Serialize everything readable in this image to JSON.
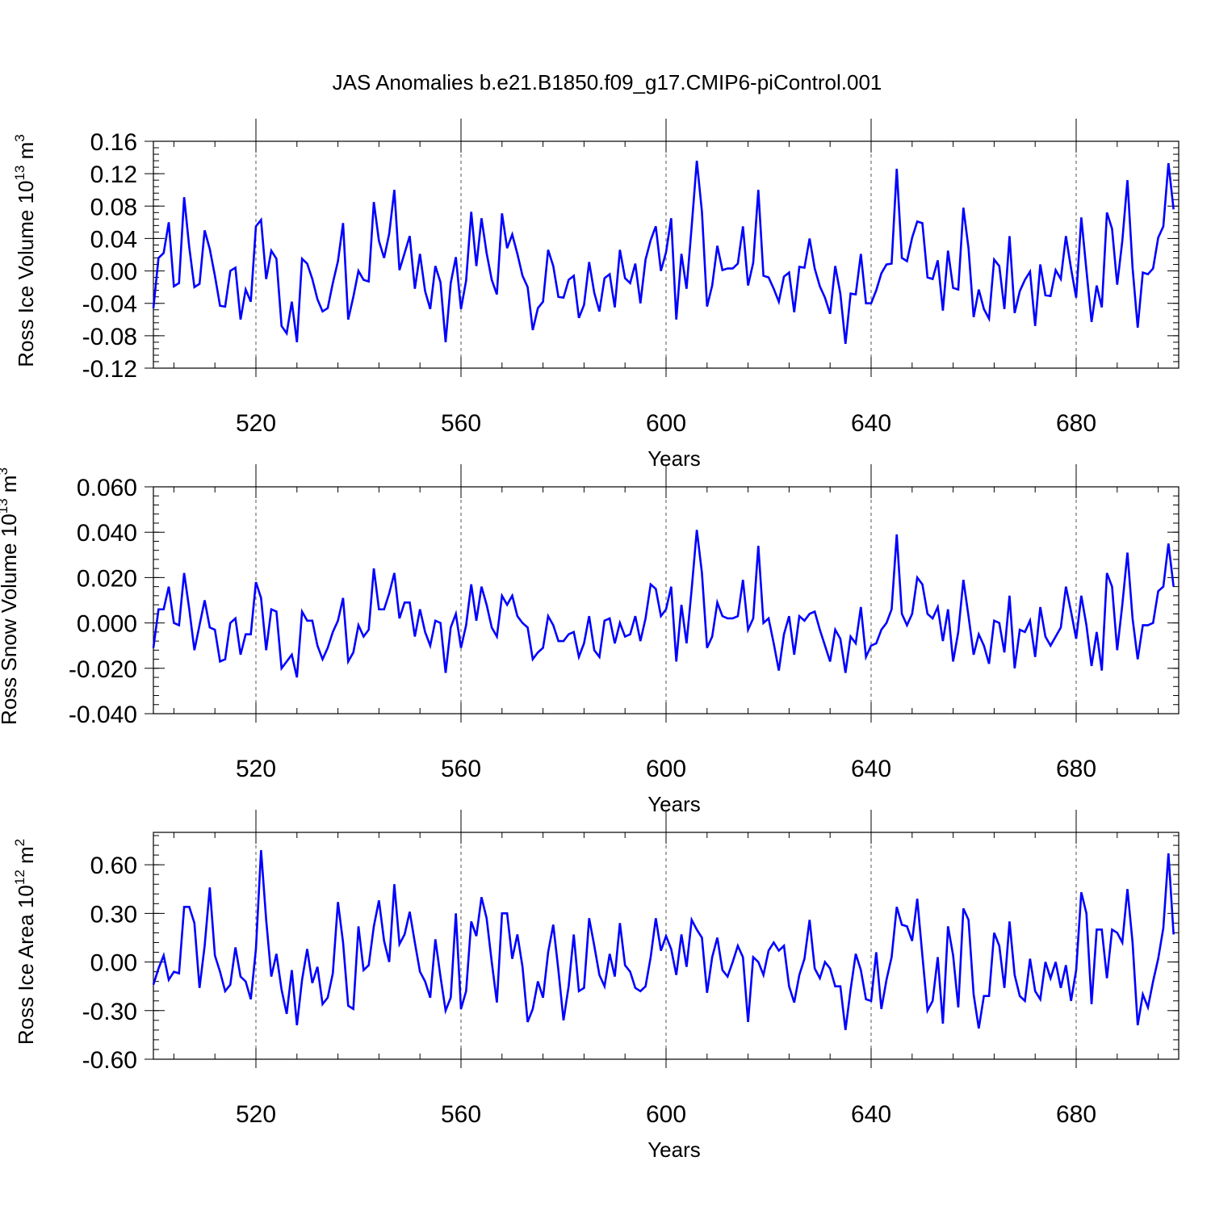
{
  "title": "JAS Anomalies b.e21.B1850.f09_g17.CMIP6-piControl.001",
  "series_color": "#0000ff",
  "chart_data": [
    {
      "type": "line",
      "ylabel": "Ross Ice Volume",
      "ylabel_unit_base": "10",
      "ylabel_unit_exp": "13",
      "ylabel_unit_tail": " m",
      "ylabel_unit_tail_exp": "3",
      "xlabel": "Years",
      "xlim": [
        500,
        700
      ],
      "ylim": [
        -0.12,
        0.16
      ],
      "yticks": [
        -0.12,
        -0.08,
        -0.04,
        0.0,
        0.04,
        0.08,
        0.12,
        0.16
      ],
      "ytick_labels": [
        "-0.12",
        "-0.08",
        "-0.04",
        "0.00",
        "0.04",
        "0.08",
        "0.12",
        "0.16"
      ],
      "xticks": [
        520,
        560,
        600,
        640,
        680
      ],
      "xtick_labels": [
        "520",
        "560",
        "600",
        "640",
        "680"
      ],
      "x_start": 500,
      "values": [
        -0.046,
        0.016,
        0.022,
        0.06,
        -0.019,
        -0.015,
        0.091,
        0.029,
        -0.02,
        -0.016,
        0.05,
        0.027,
        -0.006,
        -0.043,
        -0.044,
        0.0,
        0.004,
        -0.06,
        -0.023,
        -0.038,
        0.055,
        0.063,
        -0.01,
        0.025,
        0.015,
        -0.068,
        -0.077,
        -0.038,
        -0.088,
        0.015,
        0.009,
        -0.01,
        -0.035,
        -0.05,
        -0.046,
        -0.015,
        0.012,
        0.059,
        -0.06,
        -0.032,
        0.0,
        -0.011,
        -0.013,
        0.085,
        0.037,
        0.016,
        0.046,
        0.1,
        0.001,
        0.022,
        0.043,
        -0.022,
        0.021,
        -0.025,
        -0.047,
        0.006,
        -0.014,
        -0.088,
        -0.015,
        0.017,
        -0.047,
        -0.012,
        0.073,
        0.006,
        0.065,
        0.022,
        -0.011,
        -0.029,
        0.071,
        0.028,
        0.045,
        0.021,
        -0.006,
        -0.02,
        -0.073,
        -0.046,
        -0.038,
        0.026,
        0.006,
        -0.032,
        -0.033,
        -0.011,
        -0.006,
        -0.058,
        -0.042,
        0.011,
        -0.027,
        -0.05,
        -0.009,
        -0.004,
        -0.045,
        0.026,
        -0.009,
        -0.015,
        0.009,
        -0.04,
        0.014,
        0.038,
        0.055,
        0.0,
        0.023,
        0.065,
        -0.06,
        0.021,
        -0.022,
        0.055,
        0.136,
        0.073,
        -0.044,
        -0.018,
        0.031,
        0.001,
        0.003,
        0.003,
        0.009,
        0.055,
        -0.018,
        0.01,
        0.1,
        -0.006,
        -0.008,
        -0.022,
        -0.038,
        -0.007,
        -0.002,
        -0.051,
        0.005,
        0.004,
        0.04,
        0.003,
        -0.019,
        -0.033,
        -0.053,
        0.006,
        -0.028,
        -0.09,
        -0.028,
        -0.029,
        0.021,
        -0.04,
        -0.04,
        -0.024,
        -0.003,
        0.008,
        0.009,
        0.126,
        0.016,
        0.012,
        0.041,
        0.061,
        0.059,
        -0.008,
        -0.01,
        0.013,
        -0.049,
        0.025,
        -0.021,
        -0.023,
        0.078,
        0.028,
        -0.057,
        -0.023,
        -0.047,
        -0.059,
        0.014,
        0.006,
        -0.047,
        0.043,
        -0.052,
        -0.025,
        -0.011,
        -0.001,
        -0.068,
        0.008,
        -0.03,
        -0.031,
        0.001,
        -0.01,
        0.043,
        0.003,
        -0.033,
        0.066,
        0.001,
        -0.063,
        -0.018,
        -0.045,
        0.072,
        0.052,
        -0.017,
        0.037,
        0.112,
        0.004,
        -0.07,
        -0.002,
        -0.004,
        0.003,
        0.041,
        0.055,
        0.133,
        0.076
      ]
    },
    {
      "type": "line",
      "ylabel": "Ross Snow Volume",
      "ylabel_unit_base": "10",
      "ylabel_unit_exp": "13",
      "ylabel_unit_tail": " m",
      "ylabel_unit_tail_exp": "3",
      "xlabel": "Years",
      "xlim": [
        500,
        700
      ],
      "ylim": [
        -0.04,
        0.06
      ],
      "yticks": [
        -0.04,
        -0.02,
        0.0,
        0.02,
        0.04,
        0.06
      ],
      "ytick_labels": [
        "-0.040",
        "-0.020",
        "0.000",
        "0.020",
        "0.040",
        "0.060"
      ],
      "xticks": [
        520,
        560,
        600,
        640,
        680
      ],
      "xtick_labels": [
        "520",
        "560",
        "600",
        "640",
        "680"
      ],
      "x_start": 500,
      "values": [
        -0.011,
        0.006,
        0.006,
        0.016,
        0.0,
        -0.001,
        0.022,
        0.006,
        -0.012,
        -0.001,
        0.01,
        -0.002,
        -0.003,
        -0.017,
        -0.016,
        0.0,
        0.002,
        -0.014,
        -0.005,
        -0.005,
        0.018,
        0.011,
        -0.012,
        0.006,
        0.005,
        -0.02,
        -0.017,
        -0.014,
        -0.024,
        0.005,
        0.001,
        0.001,
        -0.01,
        -0.016,
        -0.011,
        -0.004,
        0.001,
        0.011,
        -0.017,
        -0.013,
        -0.001,
        -0.006,
        -0.003,
        0.024,
        0.006,
        0.006,
        0.013,
        0.022,
        0.002,
        0.009,
        0.009,
        -0.006,
        0.006,
        -0.004,
        -0.01,
        0.001,
        0.0,
        -0.022,
        -0.002,
        0.004,
        -0.011,
        -0.001,
        0.017,
        0.001,
        0.016,
        0.008,
        -0.002,
        -0.006,
        0.012,
        0.008,
        0.012,
        0.003,
        0.0,
        -0.002,
        -0.016,
        -0.013,
        -0.011,
        0.003,
        -0.001,
        -0.008,
        -0.008,
        -0.005,
        -0.004,
        -0.015,
        -0.009,
        0.003,
        -0.012,
        -0.015,
        0.001,
        0.002,
        -0.009,
        0.0,
        -0.006,
        -0.005,
        0.003,
        -0.008,
        0.002,
        0.017,
        0.015,
        0.003,
        0.006,
        0.016,
        -0.017,
        0.008,
        -0.009,
        0.015,
        0.041,
        0.022,
        -0.011,
        -0.006,
        0.009,
        0.003,
        0.002,
        0.002,
        0.003,
        0.019,
        -0.003,
        0.002,
        0.034,
        0.0,
        0.002,
        -0.009,
        -0.021,
        -0.005,
        0.003,
        -0.014,
        0.003,
        0.001,
        0.004,
        0.005,
        -0.003,
        -0.01,
        -0.017,
        -0.003,
        -0.007,
        -0.022,
        -0.006,
        -0.009,
        0.007,
        -0.015,
        -0.01,
        -0.009,
        -0.003,
        0.0,
        0.006,
        0.039,
        0.004,
        -0.001,
        0.004,
        0.02,
        0.017,
        0.004,
        0.002,
        0.007,
        -0.008,
        0.006,
        -0.017,
        -0.004,
        0.019,
        0.003,
        -0.014,
        -0.005,
        -0.01,
        -0.018,
        0.001,
        0.0,
        -0.013,
        0.012,
        -0.02,
        -0.003,
        -0.004,
        0.001,
        -0.015,
        0.007,
        -0.006,
        -0.01,
        -0.006,
        -0.002,
        0.016,
        0.005,
        -0.007,
        0.012,
        -0.001,
        -0.019,
        -0.004,
        -0.021,
        0.022,
        0.016,
        -0.012,
        0.008,
        0.031,
        0.002,
        -0.016,
        -0.001,
        -0.001,
        0.0,
        0.014,
        0.016,
        0.035,
        0.016
      ]
    },
    {
      "type": "line",
      "ylabel": "Ross Ice Area",
      "ylabel_unit_base": "10",
      "ylabel_unit_exp": "12",
      "ylabel_unit_tail": " m",
      "ylabel_unit_tail_exp": "2",
      "xlabel": "Years",
      "xlim": [
        500,
        700
      ],
      "ylim": [
        -0.6,
        0.8
      ],
      "yticks": [
        -0.6,
        -0.3,
        0.0,
        0.3,
        0.6
      ],
      "ytick_labels": [
        "-0.60",
        "-0.30",
        "0.00",
        "0.30",
        "0.60"
      ],
      "xticks": [
        520,
        560,
        600,
        640,
        680
      ],
      "xtick_labels": [
        "520",
        "560",
        "600",
        "640",
        "680"
      ],
      "x_start": 500,
      "values": [
        -0.14,
        -0.04,
        0.04,
        -0.11,
        -0.06,
        -0.07,
        0.34,
        0.34,
        0.24,
        -0.16,
        0.1,
        0.46,
        0.04,
        -0.06,
        -0.18,
        -0.14,
        0.09,
        -0.09,
        -0.12,
        -0.23,
        0.08,
        0.69,
        0.26,
        -0.09,
        0.05,
        -0.17,
        -0.32,
        -0.05,
        -0.39,
        -0.11,
        0.08,
        -0.13,
        -0.03,
        -0.26,
        -0.22,
        -0.07,
        0.37,
        0.12,
        -0.27,
        -0.29,
        0.22,
        -0.05,
        -0.02,
        0.22,
        0.38,
        0.13,
        0.0,
        0.48,
        0.11,
        0.17,
        0.31,
        0.12,
        -0.06,
        -0.12,
        -0.22,
        0.14,
        -0.09,
        -0.3,
        -0.22,
        0.3,
        -0.29,
        -0.18,
        0.25,
        0.16,
        0.4,
        0.27,
        0.0,
        -0.25,
        0.3,
        0.3,
        0.02,
        0.17,
        -0.03,
        -0.37,
        -0.29,
        -0.12,
        -0.22,
        0.06,
        0.23,
        -0.05,
        -0.36,
        -0.15,
        0.17,
        -0.18,
        -0.16,
        0.27,
        0.1,
        -0.08,
        -0.15,
        0.05,
        -0.09,
        0.24,
        -0.02,
        -0.06,
        -0.16,
        -0.18,
        -0.15,
        0.03,
        0.27,
        0.07,
        0.16,
        0.08,
        -0.08,
        0.17,
        -0.03,
        0.26,
        0.2,
        0.15,
        -0.19,
        0.03,
        0.15,
        -0.05,
        -0.09,
        0.0,
        0.1,
        0.03,
        -0.37,
        0.03,
        0.0,
        -0.08,
        0.07,
        0.12,
        0.07,
        0.1,
        -0.15,
        -0.25,
        -0.08,
        0.02,
        0.26,
        -0.04,
        -0.1,
        0.0,
        -0.04,
        -0.15,
        -0.15,
        -0.42,
        -0.17,
        0.05,
        -0.05,
        -0.23,
        -0.24,
        0.06,
        -0.29,
        -0.11,
        0.03,
        0.34,
        0.23,
        0.22,
        0.13,
        0.39,
        0.04,
        -0.3,
        -0.24,
        0.03,
        -0.38,
        0.22,
        0.04,
        -0.28,
        0.33,
        0.26,
        -0.2,
        -0.41,
        -0.21,
        -0.21,
        0.18,
        0.1,
        -0.16,
        0.25,
        -0.08,
        -0.21,
        -0.24,
        0.02,
        -0.18,
        -0.23,
        0.0,
        -0.1,
        0.0,
        -0.16,
        -0.02,
        -0.24,
        -0.05,
        0.43,
        0.3,
        -0.26,
        0.2,
        0.2,
        -0.1,
        0.2,
        0.18,
        0.12,
        0.45,
        0.12,
        -0.39,
        -0.2,
        -0.28,
        -0.12,
        0.02,
        0.21,
        0.67,
        0.17
      ]
    }
  ]
}
